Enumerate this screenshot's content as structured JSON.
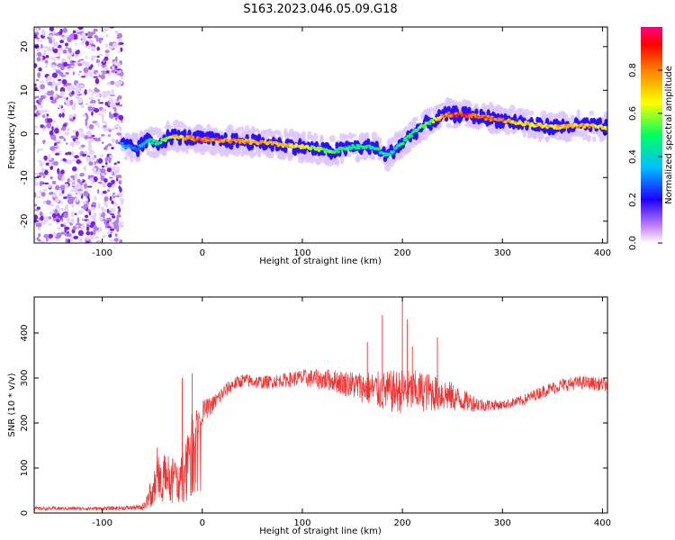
{
  "title": "S163.2023.046.05.09.G18",
  "chart_data": [
    {
      "type": "heatmap",
      "name": "spectrogram",
      "xlabel": "Height of straight line (km)",
      "ylabel": "Frequency (Hz)",
      "xlim": [
        -168,
        405
      ],
      "ylim": [
        -25,
        24.5
      ],
      "xticks": [
        -100,
        0,
        100,
        200,
        300,
        400
      ],
      "yticks": [
        -20,
        -10,
        0,
        10,
        20
      ],
      "colorbar": {
        "label": "Normalized spectral amplitude",
        "range": [
          0,
          1
        ],
        "ticks": [
          "0.0",
          "0.2",
          "0.4",
          "0.6",
          "0.8"
        ],
        "colors": [
          "#ffffff",
          "#a040ff",
          "#2000ff",
          "#00c0ff",
          "#00ff60",
          "#ffff00",
          "#ff8000",
          "#ff0000",
          "#ff0080"
        ]
      },
      "noise_region_x": [
        -168,
        -80
      ],
      "ridge": {
        "x": [
          -80,
          -65,
          -55,
          -45,
          -30,
          -10,
          20,
          60,
          100,
          130,
          150,
          170,
          185,
          200,
          215,
          230,
          245,
          260,
          290,
          320,
          350,
          380,
          405
        ],
        "y": [
          -2.5,
          -3.5,
          -1.5,
          -2,
          -0.5,
          -1,
          -1.5,
          -2,
          -3,
          -4,
          -3,
          -3,
          -5,
          -2,
          1,
          3,
          4.5,
          4.5,
          3.5,
          2.5,
          1.5,
          2,
          1.5
        ],
        "amp": [
          0.35,
          0.3,
          0.4,
          0.5,
          0.7,
          0.85,
          0.85,
          0.8,
          0.7,
          0.55,
          0.5,
          0.5,
          0.45,
          0.5,
          0.55,
          0.6,
          0.85,
          0.95,
          0.85,
          0.7,
          0.75,
          0.8,
          0.7
        ]
      }
    },
    {
      "type": "line",
      "name": "snr",
      "xlabel": "Height of straight line (km)",
      "ylabel": "SNR (10 * v/v)",
      "xlim": [
        -168,
        405
      ],
      "ylim": [
        0,
        480
      ],
      "xticks": [
        -100,
        0,
        100,
        200,
        300,
        400
      ],
      "yticks": [
        0,
        100,
        200,
        300,
        400
      ],
      "color": "#ee3333",
      "series": [
        {
          "name": "SNR",
          "x": [
            -168,
            -100,
            -60,
            -50,
            -45,
            -38,
            -30,
            -20,
            -12,
            -5,
            0,
            10,
            20,
            30,
            40,
            60,
            80,
            100,
            130,
            160,
            180,
            200,
            220,
            240,
            260,
            280,
            300,
            320,
            340,
            360,
            380,
            405
          ],
          "y": [
            10,
            10,
            12,
            50,
            80,
            90,
            85,
            95,
            160,
            200,
            225,
            240,
            265,
            285,
            295,
            290,
            295,
            300,
            295,
            280,
            270,
            270,
            270,
            265,
            250,
            240,
            240,
            250,
            270,
            285,
            290,
            285
          ],
          "jitter": [
            4,
            4,
            6,
            35,
            45,
            40,
            40,
            50,
            55,
            40,
            25,
            20,
            18,
            15,
            15,
            15,
            15,
            20,
            25,
            35,
            45,
            50,
            45,
            40,
            25,
            15,
            10,
            12,
            14,
            15,
            15,
            15
          ]
        }
      ],
      "spikes": [
        {
          "x": 180,
          "y": 440
        },
        {
          "x": 200,
          "y": 480
        },
        {
          "x": 205,
          "y": 430
        },
        {
          "x": 210,
          "y": 370
        },
        {
          "x": 165,
          "y": 380
        },
        {
          "x": 235,
          "y": 390
        },
        {
          "x": -45,
          "y": 145
        },
        {
          "x": -10,
          "y": 310
        },
        {
          "x": -20,
          "y": 300
        }
      ]
    }
  ]
}
